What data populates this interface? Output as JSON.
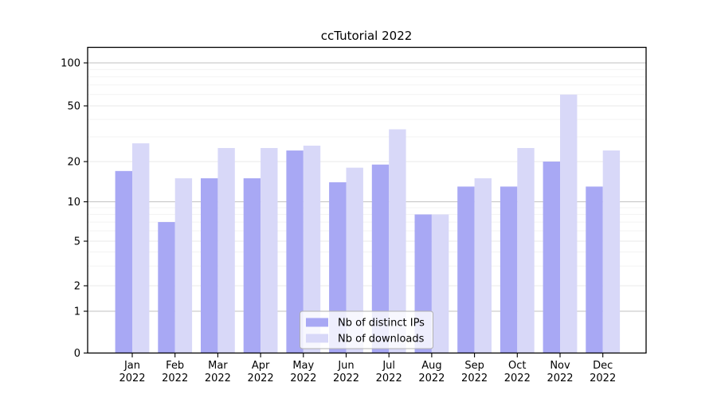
{
  "chart_data": {
    "type": "bar",
    "title": "ccTutorial 2022",
    "categories": [
      "Jan 2022",
      "Feb 2022",
      "Mar 2022",
      "Apr 2022",
      "May 2022",
      "Jun 2022",
      "Jul 2022",
      "Aug 2022",
      "Sep 2022",
      "Oct 2022",
      "Nov 2022",
      "Dec 2022"
    ],
    "series": [
      {
        "name": "Nb of distinct IPs",
        "color": "#a8a8f4",
        "values": [
          17,
          7,
          15,
          15,
          24,
          14,
          19,
          8,
          13,
          13,
          20,
          13
        ]
      },
      {
        "name": "Nb of downloads",
        "color": "#d8d8f8",
        "values": [
          27,
          15,
          25,
          25,
          26,
          18,
          34,
          8,
          15,
          25,
          60,
          24
        ]
      }
    ],
    "xlabel": "",
    "ylabel": "",
    "yscale": "symlog",
    "yticks": [
      0,
      1,
      2,
      5,
      10,
      20,
      50,
      100
    ],
    "minor_grid_values": [
      3,
      4,
      6,
      7,
      8,
      9,
      30,
      40,
      60,
      70,
      80,
      90
    ],
    "decade_grid_values": [
      1,
      10,
      100
    ],
    "ylim": [
      0,
      130
    ],
    "grid": "both",
    "legend_position": "lower center",
    "colors": {
      "spine": "#000000",
      "decade_grid": "#c2c2c2",
      "labeled_grid": "#eaeaea",
      "minor_grid": "#f3f3f3",
      "legend_border": "#b0b0b0",
      "legend_background": "rgba(255,255,255,0.8)"
    }
  }
}
